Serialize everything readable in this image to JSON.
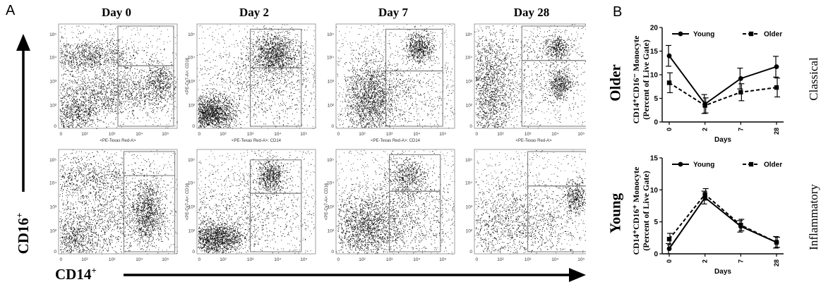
{
  "panel_a": {
    "letter": "A",
    "days": [
      "Day 0",
      "Day 2",
      "Day 7",
      "Day 28"
    ],
    "y_axis_label": "CD16",
    "x_axis_label": "CD14",
    "superscript": "+",
    "x_ticks": [
      "0",
      "10²",
      "10³",
      "10⁴",
      "10⁵"
    ],
    "y_ticks": [
      "0",
      "10²",
      "10³",
      "10⁴",
      "10⁵"
    ],
    "plot_xlabels_row1": [
      "<PE-Texas Red-A>",
      "<PE-Texas Red-A>: CD14",
      "<PE-Texas Red-A>: CD14",
      "<PE-Texas Red-A>"
    ],
    "plot_ylabels_row1": [
      "",
      "<PE-Cy7-A>: CD16",
      "",
      ""
    ],
    "plot_ylabels_row2": [
      "",
      "<PE-Cy7-A>: CD16",
      "<PE-Cy7-A>: CD16",
      ""
    ],
    "row_labels": [
      "Older",
      "Young"
    ]
  },
  "panel_b": {
    "letter": "B",
    "side_labels": [
      "Classical",
      "Inflammatory"
    ]
  },
  "chart_data": [
    {
      "type": "line",
      "title": "",
      "ylabel_line1": "CD14⁺CD16⁻ Monocyte",
      "ylabel_line2": "(Percent of Live Gate)",
      "xlabel": "Days",
      "categories": [
        "0",
        "2",
        "7",
        "28"
      ],
      "ylim": [
        0,
        20
      ],
      "yticks": [
        "0",
        "5",
        "10",
        "15",
        "20"
      ],
      "legend_position": "top",
      "series": [
        {
          "name": "Young",
          "values": [
            14,
            3.8,
            9.2,
            11.7
          ],
          "errors": [
            2.2,
            2.0,
            2.2,
            2.2
          ],
          "marker": "circle",
          "dash": "solid"
        },
        {
          "name": "Older",
          "values": [
            8.3,
            3.5,
            6.3,
            7.3
          ],
          "errors": [
            2.1,
            1.6,
            1.8,
            2.0
          ],
          "marker": "square",
          "dash": "dashed"
        }
      ]
    },
    {
      "type": "line",
      "title": "",
      "ylabel_line1": "CD14⁺CD16⁺ Monocyte",
      "ylabel_line2": "(Percent of Live Gate)",
      "xlabel": "Days",
      "categories": [
        "0",
        "2",
        "7",
        "28"
      ],
      "ylim": [
        0,
        15
      ],
      "yticks": [
        "0",
        "5",
        "10",
        "15"
      ],
      "legend_position": "top",
      "series": [
        {
          "name": "Young",
          "values": [
            0.8,
            8.8,
            4.3,
            1.8
          ],
          "errors": [
            0.8,
            1.0,
            0.9,
            0.9
          ],
          "marker": "circle",
          "dash": "solid"
        },
        {
          "name": "Older",
          "values": [
            2.3,
            9.3,
            4.5,
            1.8
          ],
          "errors": [
            0.9,
            0.9,
            0.9,
            0.8
          ],
          "marker": "square",
          "dash": "dashed"
        }
      ]
    }
  ]
}
